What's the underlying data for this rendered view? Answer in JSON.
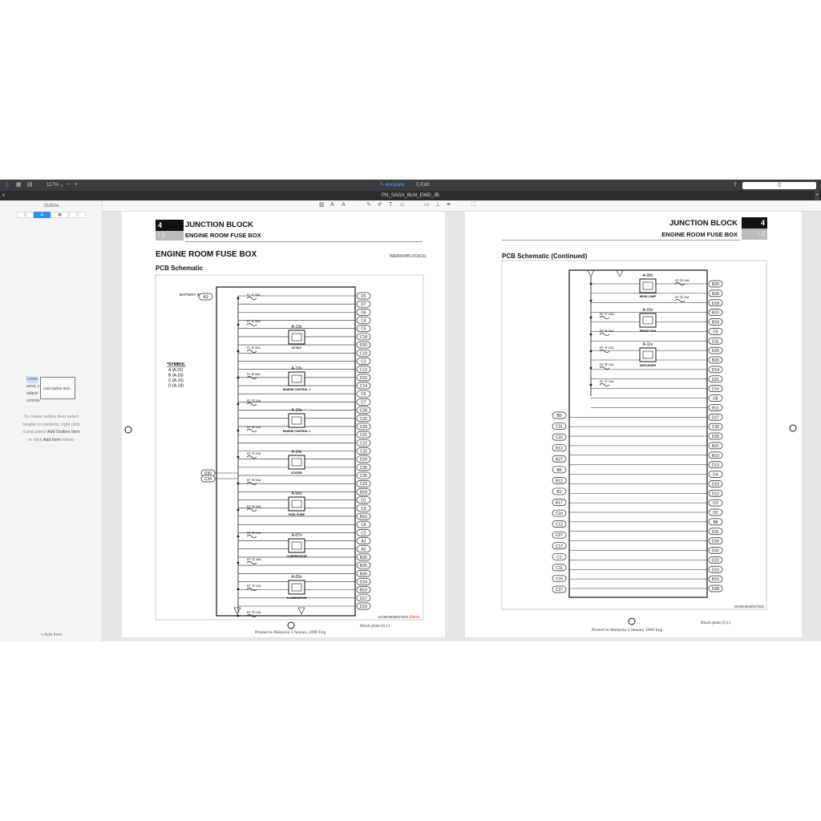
{
  "toolbar": {
    "zoom": "117%",
    "annotate": "Annotate",
    "edit": "Edit",
    "search_placeholder": "Q"
  },
  "tab": {
    "title": "PN_SAGA_BLM_EWD_JB",
    "close": "x",
    "add": "+"
  },
  "sidebar": {
    "title": "Outline",
    "segments": [
      "bookmark",
      "outline",
      "thumbnails",
      "pages"
    ],
    "illustration_lines": [
      "Lorem",
      "amet, c",
      "adipisi",
      "commo"
    ],
    "illustration_menu": "Add Outline Item",
    "hint": [
      "To create outline item select",
      "header in contents, right click",
      "it and select ",
      "Add Outline Item",
      "or click ",
      "Add Item",
      " below."
    ],
    "add_item": "+ Add Item"
  },
  "pages": [
    {
      "chapter": "4",
      "chapter_sub": "/ 1",
      "section": "JUNCTION BLOCK",
      "subsection": "ENGINE ROOM FUSE BOX",
      "title": "ENGINE ROOM FUSE BOX",
      "code": "WEW004BLOCK011",
      "subtitle": "PCB Schematic",
      "figure_code": "DOMH004R07004",
      "figure_pct": "@50%",
      "footer": "Printed in Malaysia 3 January 2008 Eng",
      "plate": "Black plate (8,1)",
      "battery": "BATTERY (B+)",
      "battery_conn": "A1",
      "symbol_title": "*SYMBOL",
      "symbols": [
        "A (A-21)",
        "B (A-18)",
        "C (A-16)",
        "D (A-19)"
      ],
      "left_conns": [
        "D30",
        "C24"
      ],
      "connectors": [
        "D5",
        "D7",
        "D6",
        "C4",
        "C5",
        "C18",
        "D20",
        "C19",
        "C3",
        "C13",
        "D15",
        "C14",
        "C6",
        "C7",
        "C28",
        "C20",
        "C29",
        "C21",
        "C22",
        "C32",
        "D29",
        "C26",
        "C25",
        "C23",
        "B18",
        "D1",
        "C9",
        "B16",
        "C8",
        "C2",
        "A1",
        "A2",
        "B26",
        "B25",
        "B30",
        "D24",
        "B19",
        "D17",
        "D19"
      ],
      "fuses": [
        "FL ① 30A",
        "FL ② 30A",
        "FL ③ 30A",
        "FL ④ 30A",
        "EF ⑤ 15A",
        "EF ⑥ 10A",
        "EF ⑦ 15A",
        "EF ⑧ 20A",
        "EF ⑨ 15A",
        "EF ⑩ 15A",
        "EF ⑪ 40A",
        "EF ⑫ 10A",
        "EF ⑬ 10A"
      ],
      "relays": [
        {
          "id": "A-13x",
          "name": "AT RLY"
        },
        {
          "id": "A-12x",
          "name": "ENGINE CONTROL 1"
        },
        {
          "id": "A-10x",
          "name": "ENGINE CONTROL 2"
        },
        {
          "id": "A-14x",
          "name": "STATER"
        },
        {
          "id": "A-06x",
          "name": "FUEL PUMP"
        },
        {
          "id": "A-07x",
          "name": "COMPRESSOR"
        },
        {
          "id": "A-09x",
          "name": "ILLUMINATION"
        }
      ]
    },
    {
      "chapter": "4",
      "chapter_sub": "/ 2",
      "section": "JUNCTION BLOCK",
      "subsection": "ENGINE ROOM FUSE BOX",
      "subtitle": "PCB Schematic (Continued)",
      "figure_code": "DOMH004R07002",
      "footer": "Printed in Malaysia 3 January 2008 Eng",
      "plate": "Black plate (9,1)",
      "connectors": [
        "B29",
        "B28",
        "D18",
        "B23",
        "B24",
        "D9",
        "D11",
        "D26",
        "B20",
        "D14",
        "D21",
        "D16",
        "D8",
        "B11",
        "D27",
        "C30",
        "D25",
        "B21",
        "B10",
        "D13",
        "D4",
        "D23",
        "D12",
        "D3",
        "D2",
        "B9",
        "D31",
        "D26",
        "D32",
        "D22",
        "D10",
        "B15",
        "D28"
      ],
      "left_conns": [
        "B6",
        "C31",
        "C10",
        "B13",
        "B27",
        "B5",
        "B12",
        "B1",
        "B17",
        "C16",
        "C12",
        "C27",
        "C17",
        "C1",
        "C11",
        "C15",
        "C27"
      ],
      "fuses": [
        "EF ⑮ 15A",
        "EF ⑯ 15A",
        "EF ⑰ 20A",
        "EF ⑱ 20A",
        "EF ⑲ 10A",
        "EF ⑳ 15A",
        "EF ㉑ 15A"
      ],
      "relays": [
        {
          "id": "A-08x",
          "name": "HEAD LAMP"
        },
        {
          "id": "A-15x",
          "name": "FRONT FOG"
        },
        {
          "id": "A-11x",
          "name": "DEFOGGER"
        }
      ]
    }
  ],
  "colors": {
    "accent": "#2f8cf0",
    "toolbar": "#3a3b3d",
    "pct_red": "#e02020"
  }
}
